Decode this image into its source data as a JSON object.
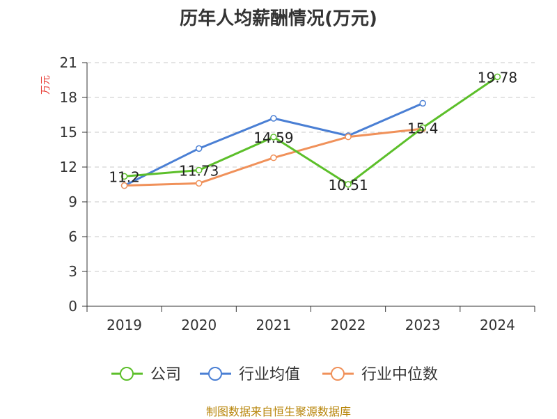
{
  "chart_data": {
    "type": "line",
    "title": "历年人均薪酬情况(万元)",
    "ylabel": "万元",
    "xlabel": "",
    "categories": [
      "2019",
      "2020",
      "2021",
      "2022",
      "2023",
      "2024"
    ],
    "ylim": [
      0,
      21
    ],
    "yticks": [
      0,
      3,
      6,
      9,
      12,
      15,
      18,
      21
    ],
    "grid": true,
    "legend_position": "bottom",
    "series": [
      {
        "name": "公司",
        "values": [
          11.2,
          11.73,
          14.59,
          10.51,
          15.4,
          19.78
        ],
        "labels": [
          "11.2",
          "11.73",
          "14.59",
          "10.51",
          "15.4",
          "19.78"
        ],
        "color": "#5cbf2a"
      },
      {
        "name": "行业均值",
        "values": [
          10.4,
          13.6,
          16.2,
          14.7,
          17.5,
          null
        ],
        "color": "#4a7fd4"
      },
      {
        "name": "行业中位数",
        "values": [
          10.4,
          10.6,
          12.8,
          14.6,
          15.3,
          null
        ],
        "color": "#f0915a"
      }
    ]
  },
  "source_note": "制图数据来自恒生聚源数据库"
}
